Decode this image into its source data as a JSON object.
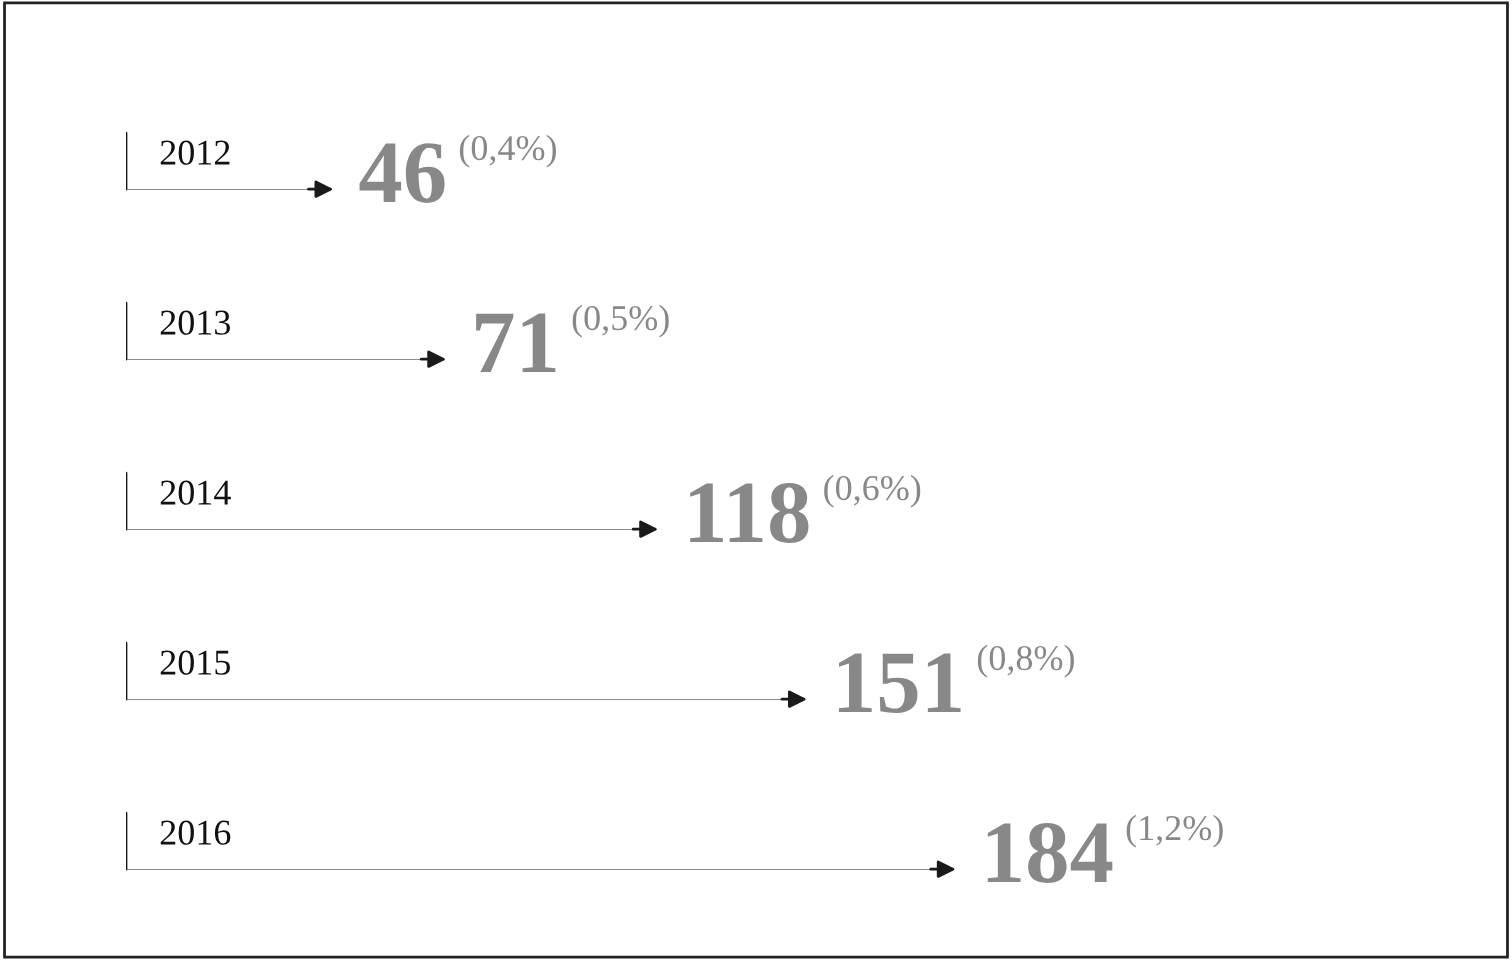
{
  "chart_data": {
    "type": "bar",
    "orientation": "horizontal",
    "categories": [
      "2012",
      "2013",
      "2014",
      "2015",
      "2016"
    ],
    "values": [
      46,
      71,
      118,
      151,
      184
    ],
    "color": "#1a1a1a",
    "data_labels": true,
    "annotations": [
      "(0,4%)",
      "(0,5%)",
      "(0,6%)",
      "(0,8%)",
      "(1,2%)"
    ]
  }
}
